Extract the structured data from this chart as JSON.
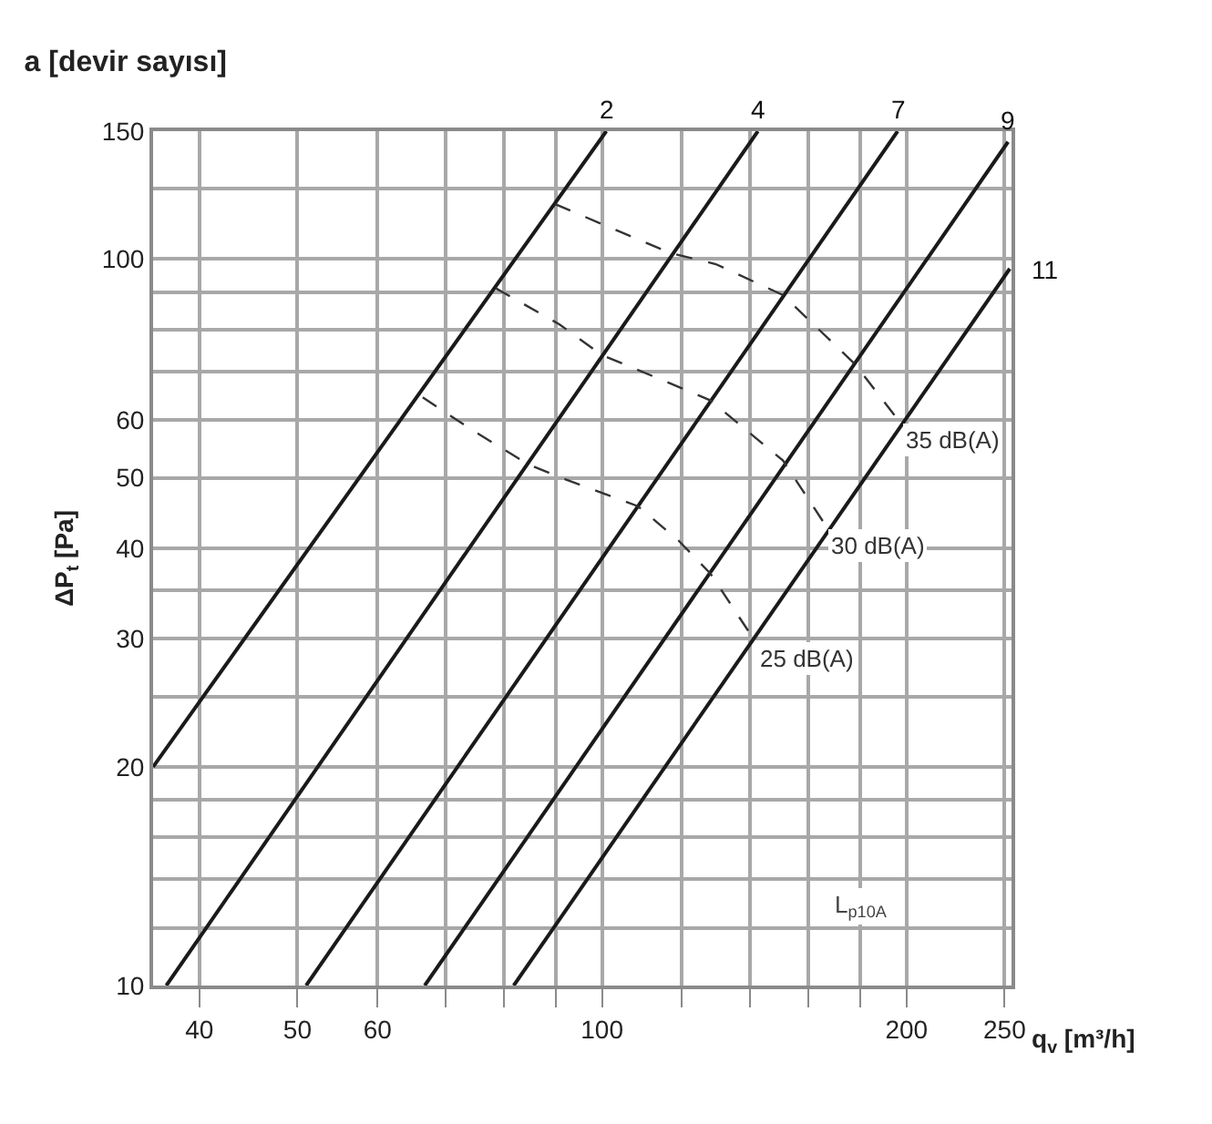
{
  "chart_data": {
    "type": "line",
    "title": "a [devir sayısı]",
    "xlabel": "q$_{v}$ [m³/h]",
    "ylabel": "ΔP$_{t}$ [Pa]",
    "log": "xy",
    "grid": true,
    "legend": false,
    "marker": "none",
    "xlim": [
      36,
      254
    ],
    "ylim": [
      10,
      150
    ],
    "xticks": [
      40,
      50,
      60,
      {
        "value": 70,
        "label": null
      },
      {
        "value": 80,
        "label": null
      },
      {
        "value": 90,
        "label": null
      },
      100,
      {
        "value": 120,
        "label": null
      },
      {
        "value": 140,
        "label": null
      },
      {
        "value": 160,
        "label": null
      },
      {
        "value": 180,
        "label": null
      },
      200,
      250
    ],
    "yticks": [
      10,
      {
        "value": 12,
        "label": null
      },
      {
        "value": 14,
        "label": null
      },
      {
        "value": 16,
        "label": null
      },
      {
        "value": 18,
        "label": null
      },
      20,
      {
        "value": 25,
        "label": null
      },
      30,
      {
        "value": 35,
        "label": null
      },
      40,
      50,
      60,
      {
        "value": 70,
        "label": null
      },
      {
        "value": 80,
        "label": null
      },
      {
        "value": 90,
        "label": null
      },
      100,
      {
        "value": 125,
        "label": null
      },
      150
    ],
    "annotations": [
      "L$_{p10A}$"
    ],
    "series": [
      {
        "name": "2",
        "color": "#1a1a1a",
        "line_style": "solid",
        "x": [
          36,
          101
        ],
        "values": [
          20,
          150
        ]
      },
      {
        "name": "4",
        "color": "#1a1a1a",
        "line_style": "solid",
        "x": [
          37.1,
          142.6
        ],
        "values": [
          10,
          150
        ]
      },
      {
        "name": "7",
        "color": "#1a1a1a",
        "line_style": "solid",
        "x": [
          51,
          196
        ],
        "values": [
          10,
          150
        ]
      },
      {
        "name": "9",
        "color": "#1a1a1a",
        "line_style": "solid",
        "x": [
          66.8,
          252
        ],
        "values": [
          10,
          145
        ]
      },
      {
        "name": "11",
        "color": "#1a1a1a",
        "line_style": "solid",
        "x": [
          81.8,
          253
        ],
        "values": [
          10,
          97
        ]
      },
      {
        "name": "35 dB(A)",
        "color": "#333333",
        "line_style": "dashed",
        "x": [
          89.9,
          116.9,
          129.6,
          151,
          178,
          196
        ],
        "values": [
          119,
          101.9,
          98.4,
          89.2,
          71.6,
          60.2
        ]
      },
      {
        "name": "30 dB(A)",
        "color": "#333333",
        "line_style": "dashed",
        "x": [
          78.5,
          90.8,
          99.9,
          108.5,
          128,
          151,
          166
        ],
        "values": [
          91.2,
          81.3,
          73.8,
          70.4,
          63.9,
          52.8,
          43.2
        ]
      },
      {
        "name": "25 dB(A)",
        "color": "#333333",
        "line_style": "dashed",
        "x": [
          66.5,
          74.8,
          84.7,
          90.8,
          108.5,
          119,
          128,
          141
        ],
        "values": [
          64.5,
          57.9,
          52.1,
          50.1,
          45.7,
          41.0,
          36.9,
          30.1
        ]
      }
    ]
  }
}
